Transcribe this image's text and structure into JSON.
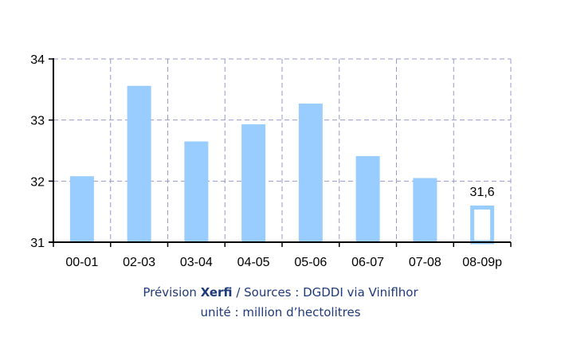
{
  "chart_data": {
    "type": "bar",
    "categories": [
      "00-01",
      "02-03",
      "03-04",
      "04-05",
      "05-06",
      "06-07",
      "07-08",
      "08-09p"
    ],
    "values": [
      32.08,
      33.56,
      32.65,
      32.93,
      33.27,
      32.41,
      32.05,
      31.6
    ],
    "data_labels": [
      "",
      "",
      "",
      "",
      "",
      "",
      "",
      "31,6"
    ],
    "forecast_index": 7,
    "ylim": [
      31,
      34
    ],
    "yticks": [
      "31",
      "32",
      "33",
      "34"
    ],
    "ytick_values": [
      31,
      32,
      33,
      34
    ],
    "grid": true,
    "colors": {
      "bar": "#99ccff",
      "forecast_fill": "#ffffff",
      "grid": "#9999cc",
      "axis": "#000000"
    }
  },
  "captions": {
    "line1_prefix": "Prévision ",
    "line1_brand": "Xerfi",
    "line1_suffix": "  / Sources : DGDDI via Viniflhor",
    "line2": "unité : million d’hectolitres"
  }
}
